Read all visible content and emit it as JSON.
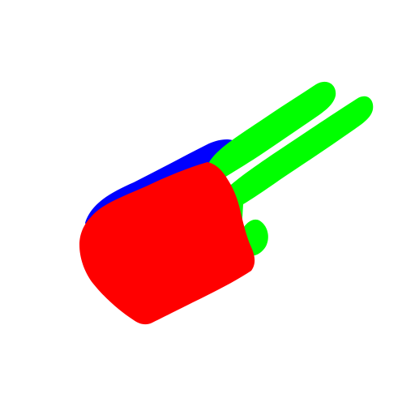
{
  "segmentation": {
    "regions": [
      {
        "name": "fingers",
        "color": "#00ff00"
      },
      {
        "name": "palm-back",
        "color": "#ff0000"
      },
      {
        "name": "wrist-edge",
        "color": "#0000ff"
      }
    ],
    "background_color": "#ffffff"
  }
}
